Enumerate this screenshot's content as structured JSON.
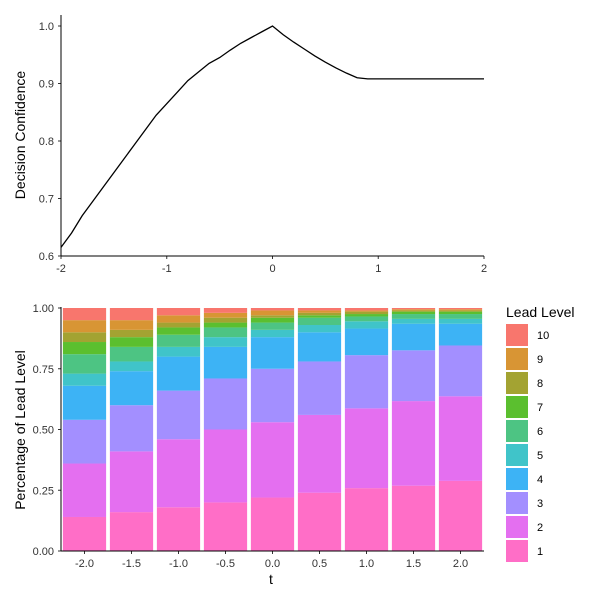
{
  "chart_data": [
    {
      "type": "line",
      "title": "",
      "xlabel": "",
      "ylabel": "Decision Confidence",
      "xlim": [
        -2,
        2
      ],
      "ylim": [
        0.6,
        1.0
      ],
      "x_ticks": [
        "-2",
        "-1",
        "0",
        "1",
        "2"
      ],
      "y_ticks": [
        "0.6",
        "0.7",
        "0.8",
        "0.9",
        "1.0"
      ],
      "series": [
        {
          "name": "Decision Confidence",
          "color": "#000000",
          "x": [
            -2.0,
            -1.9,
            -1.8,
            -1.7,
            -1.6,
            -1.5,
            -1.4,
            -1.3,
            -1.2,
            -1.1,
            -1.0,
            -0.9,
            -0.8,
            -0.7,
            -0.6,
            -0.5,
            -0.4,
            -0.3,
            -0.2,
            -0.1,
            0.0,
            0.1,
            0.2,
            0.3,
            0.4,
            0.5,
            0.6,
            0.7,
            0.8,
            0.9,
            1.0,
            1.2,
            1.4,
            1.6,
            1.8,
            2.0
          ],
          "y": [
            0.615,
            0.64,
            0.67,
            0.695,
            0.72,
            0.745,
            0.77,
            0.795,
            0.82,
            0.845,
            0.865,
            0.885,
            0.905,
            0.92,
            0.935,
            0.945,
            0.958,
            0.97,
            0.98,
            0.99,
            1.0,
            0.985,
            0.972,
            0.96,
            0.948,
            0.937,
            0.927,
            0.918,
            0.91,
            0.908,
            0.908,
            0.908,
            0.908,
            0.908,
            0.908,
            0.908
          ]
        }
      ]
    },
    {
      "type": "bar",
      "stacked": "fill",
      "title": "",
      "xlabel": "t",
      "ylabel": "Percentage of Lead Level",
      "ylim": [
        0,
        1
      ],
      "y_ticks": [
        "0.00",
        "0.25",
        "0.50",
        "0.75",
        "1.00"
      ],
      "categories": [
        "-2.0",
        "-1.5",
        "-1.0",
        "-0.5",
        "0.0",
        "0.5",
        "1.0",
        "1.5",
        "2.0"
      ],
      "legend_title": "Lead Level",
      "legend_position": "right",
      "series": [
        {
          "name": "1",
          "color": "#FF6EC7",
          "values": [
            0.14,
            0.16,
            0.18,
            0.2,
            0.22,
            0.24,
            0.26,
            0.27,
            0.29
          ]
        },
        {
          "name": "2",
          "color": "#E46FF0",
          "values": [
            0.22,
            0.25,
            0.28,
            0.3,
            0.31,
            0.32,
            0.33,
            0.35,
            0.35
          ]
        },
        {
          "name": "3",
          "color": "#A38FFF",
          "values": [
            0.18,
            0.19,
            0.2,
            0.21,
            0.22,
            0.22,
            0.22,
            0.21,
            0.21
          ]
        },
        {
          "name": "4",
          "color": "#3DB3F5",
          "values": [
            0.14,
            0.14,
            0.14,
            0.13,
            0.13,
            0.12,
            0.11,
            0.11,
            0.09
          ]
        },
        {
          "name": "5",
          "color": "#40C4C9",
          "values": [
            0.05,
            0.04,
            0.04,
            0.04,
            0.03,
            0.03,
            0.03,
            0.02,
            0.02
          ]
        },
        {
          "name": "6",
          "color": "#4DC483",
          "values": [
            0.08,
            0.06,
            0.05,
            0.04,
            0.03,
            0.03,
            0.02,
            0.02,
            0.02
          ]
        },
        {
          "name": "7",
          "color": "#5BBF2F",
          "values": [
            0.05,
            0.04,
            0.03,
            0.02,
            0.02,
            0.01,
            0.01,
            0.01,
            0.01
          ]
        },
        {
          "name": "8",
          "color": "#A3A332",
          "values": [
            0.04,
            0.03,
            0.02,
            0.02,
            0.01,
            0.01,
            0.01,
            0.005,
            0.005
          ]
        },
        {
          "name": "9",
          "color": "#D89534",
          "values": [
            0.05,
            0.04,
            0.03,
            0.02,
            0.02,
            0.01,
            0.005,
            0.005,
            0.005
          ]
        },
        {
          "name": "10",
          "color": "#F8766D",
          "values": [
            0.05,
            0.05,
            0.03,
            0.02,
            0.01,
            0.01,
            0.01,
            0.005,
            0.005
          ]
        }
      ]
    }
  ]
}
